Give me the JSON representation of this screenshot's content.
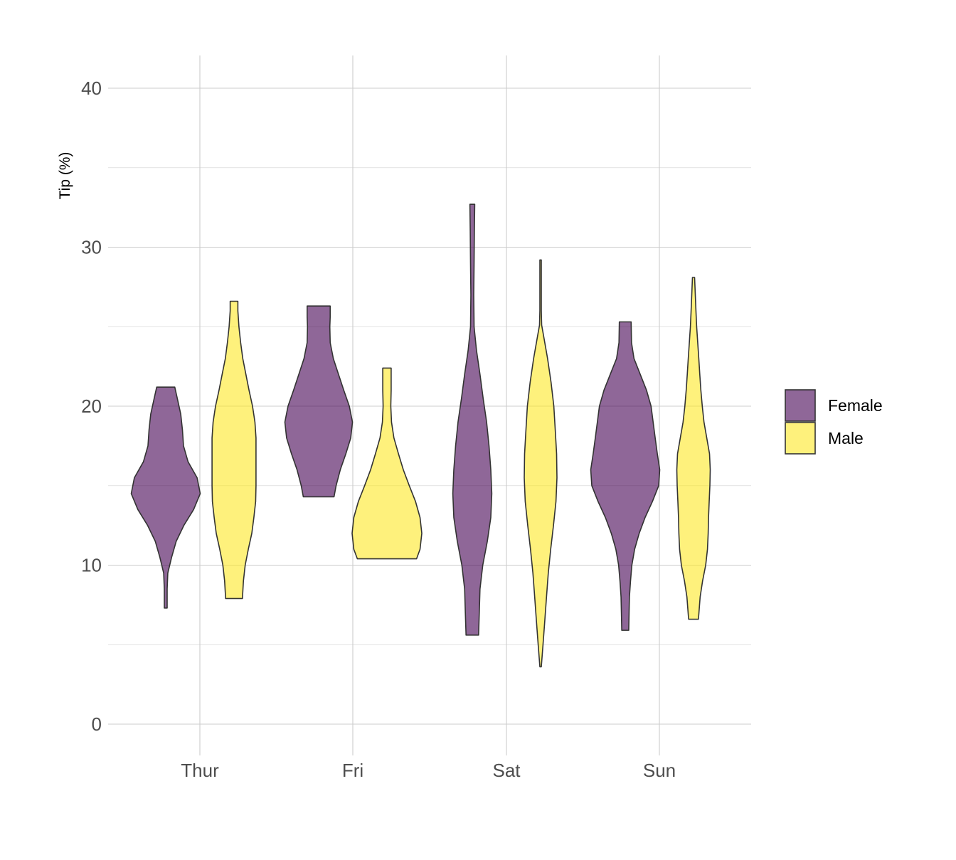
{
  "chart_data": {
    "type": "violin",
    "title": "",
    "xlabel": "",
    "ylabel": "Tip (%)",
    "ylim": [
      -2,
      42
    ],
    "y_ticks": [
      0,
      10,
      20,
      30,
      40
    ],
    "categories": [
      "Thur",
      "Fri",
      "Sat",
      "Sun"
    ],
    "grid": true,
    "legend_position": "right",
    "fill_opacity": 0.6,
    "series": [
      {
        "name": "Female",
        "color": "#440154",
        "violins": [
          {
            "category": "Thur",
            "min": 7.3,
            "max": 21.2,
            "profile": [
              [
                7.3,
                0.04
              ],
              [
                8.5,
                0.04
              ],
              [
                9.5,
                0.06
              ],
              [
                10.5,
                0.17
              ],
              [
                11.5,
                0.3
              ],
              [
                12.5,
                0.52
              ],
              [
                13.5,
                0.8
              ],
              [
                14.5,
                0.99
              ],
              [
                15.5,
                0.9
              ],
              [
                16.5,
                0.64
              ],
              [
                17.5,
                0.51
              ],
              [
                18.5,
                0.48
              ],
              [
                19.5,
                0.43
              ],
              [
                20.5,
                0.33
              ],
              [
                21.2,
                0.26
              ]
            ]
          },
          {
            "category": "Fri",
            "min": 14.3,
            "max": 26.3,
            "profile": [
              [
                14.3,
                0.44
              ],
              [
                15.0,
                0.5
              ],
              [
                16.0,
                0.62
              ],
              [
                17.0,
                0.78
              ],
              [
                18.0,
                0.92
              ],
              [
                19.0,
                0.97
              ],
              [
                20.0,
                0.88
              ],
              [
                21.0,
                0.72
              ],
              [
                22.0,
                0.57
              ],
              [
                23.0,
                0.42
              ],
              [
                24.0,
                0.33
              ],
              [
                25.0,
                0.32
              ],
              [
                25.6,
                0.33
              ],
              [
                26.3,
                0.33
              ]
            ]
          },
          {
            "category": "Sat",
            "min": 5.6,
            "max": 32.7,
            "profile": [
              [
                5.6,
                0.18
              ],
              [
                7.0,
                0.2
              ],
              [
                8.5,
                0.22
              ],
              [
                10.0,
                0.3
              ],
              [
                11.5,
                0.43
              ],
              [
                13.0,
                0.53
              ],
              [
                14.5,
                0.56
              ],
              [
                16.0,
                0.53
              ],
              [
                17.5,
                0.48
              ],
              [
                19.0,
                0.41
              ],
              [
                20.5,
                0.31
              ],
              [
                22.0,
                0.22
              ],
              [
                23.5,
                0.12
              ],
              [
                25.0,
                0.05
              ],
              [
                27.0,
                0.04
              ],
              [
                29.0,
                0.05
              ],
              [
                31.0,
                0.06
              ],
              [
                32.7,
                0.07
              ]
            ]
          },
          {
            "category": "Sun",
            "min": 5.9,
            "max": 25.3,
            "profile": [
              [
                5.9,
                0.1
              ],
              [
                7.0,
                0.11
              ],
              [
                8.0,
                0.12
              ],
              [
                9.0,
                0.15
              ],
              [
                10.0,
                0.19
              ],
              [
                11.0,
                0.27
              ],
              [
                12.0,
                0.4
              ],
              [
                13.0,
                0.57
              ],
              [
                14.0,
                0.78
              ],
              [
                15.0,
                0.96
              ],
              [
                16.0,
                0.99
              ],
              [
                17.0,
                0.92
              ],
              [
                18.0,
                0.86
              ],
              [
                19.0,
                0.8
              ],
              [
                20.0,
                0.74
              ],
              [
                21.0,
                0.61
              ],
              [
                22.0,
                0.43
              ],
              [
                23.0,
                0.25
              ],
              [
                24.0,
                0.18
              ],
              [
                25.3,
                0.17
              ]
            ]
          }
        ]
      },
      {
        "name": "Male",
        "color": "#fde725",
        "violins": [
          {
            "category": "Thur",
            "min": 7.9,
            "max": 26.6,
            "profile": [
              [
                7.9,
                0.24
              ],
              [
                9.0,
                0.27
              ],
              [
                10.0,
                0.32
              ],
              [
                11.0,
                0.41
              ],
              [
                12.0,
                0.51
              ],
              [
                13.0,
                0.57
              ],
              [
                14.0,
                0.62
              ],
              [
                15.0,
                0.63
              ],
              [
                16.0,
                0.63
              ],
              [
                17.0,
                0.63
              ],
              [
                18.0,
                0.63
              ],
              [
                19.0,
                0.6
              ],
              [
                20.0,
                0.53
              ],
              [
                21.0,
                0.43
              ],
              [
                22.0,
                0.34
              ],
              [
                23.0,
                0.25
              ],
              [
                24.0,
                0.19
              ],
              [
                25.0,
                0.14
              ],
              [
                26.0,
                0.11
              ],
              [
                26.6,
                0.11
              ]
            ]
          },
          {
            "category": "Fri",
            "min": 10.4,
            "max": 22.4,
            "profile": [
              [
                10.4,
                0.85
              ],
              [
                11.0,
                0.95
              ],
              [
                12.0,
                1.0
              ],
              [
                13.0,
                0.95
              ],
              [
                14.0,
                0.82
              ],
              [
                15.0,
                0.64
              ],
              [
                16.0,
                0.47
              ],
              [
                17.0,
                0.33
              ],
              [
                18.0,
                0.2
              ],
              [
                19.0,
                0.13
              ],
              [
                20.0,
                0.11
              ],
              [
                21.0,
                0.12
              ],
              [
                22.4,
                0.12
              ]
            ]
          },
          {
            "category": "Sat",
            "min": 3.6,
            "max": 29.2,
            "profile": [
              [
                3.6,
                0.02
              ],
              [
                5.0,
                0.07
              ],
              [
                6.5,
                0.12
              ],
              [
                8.0,
                0.17
              ],
              [
                9.5,
                0.22
              ],
              [
                11.0,
                0.29
              ],
              [
                12.5,
                0.37
              ],
              [
                14.0,
                0.44
              ],
              [
                15.5,
                0.47
              ],
              [
                17.0,
                0.46
              ],
              [
                18.5,
                0.42
              ],
              [
                20.0,
                0.38
              ],
              [
                21.5,
                0.3
              ],
              [
                23.0,
                0.2
              ],
              [
                24.5,
                0.08
              ],
              [
                25.1,
                0.03
              ],
              [
                26.0,
                0.02
              ],
              [
                29.2,
                0.02
              ]
            ]
          },
          {
            "category": "Sun",
            "min": 6.6,
            "max": 28.1,
            "profile": [
              [
                6.6,
                0.14
              ],
              [
                8.0,
                0.19
              ],
              [
                9.0,
                0.26
              ],
              [
                10.0,
                0.35
              ],
              [
                11.0,
                0.4
              ],
              [
                12.0,
                0.42
              ],
              [
                13.0,
                0.43
              ],
              [
                14.0,
                0.45
              ],
              [
                15.0,
                0.47
              ],
              [
                16.0,
                0.48
              ],
              [
                17.0,
                0.46
              ],
              [
                18.0,
                0.38
              ],
              [
                19.0,
                0.3
              ],
              [
                20.0,
                0.25
              ],
              [
                21.0,
                0.21
              ],
              [
                22.0,
                0.18
              ],
              [
                23.0,
                0.15
              ],
              [
                24.0,
                0.12
              ],
              [
                25.0,
                0.09
              ],
              [
                26.0,
                0.07
              ],
              [
                27.0,
                0.05
              ],
              [
                28.1,
                0.03
              ]
            ]
          }
        ]
      }
    ]
  }
}
